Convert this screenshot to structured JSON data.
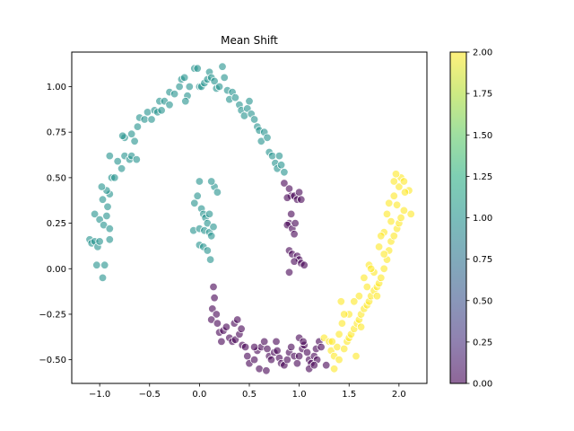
{
  "chart_data": {
    "type": "scatter",
    "title": "Mean Shift",
    "xlabel": "",
    "ylabel": "",
    "xlim": [
      -1.28,
      2.28
    ],
    "ylim": [
      -0.63,
      1.19
    ],
    "x_ticks": [
      "-1.0",
      "-0.5",
      "0.0",
      "0.5",
      "1.0",
      "1.5",
      "2.0"
    ],
    "y_ticks": [
      "-0.50",
      "-0.25",
      "0.00",
      "0.25",
      "0.50",
      "0.75",
      "1.00"
    ],
    "grid": false,
    "colormap": "viridis",
    "colorbar": {
      "range": [
        0,
        2
      ],
      "ticks": [
        "0.00",
        "0.25",
        "0.50",
        "0.75",
        "1.00",
        "1.25",
        "1.50",
        "1.75",
        "2.00"
      ]
    },
    "colors": {
      "cluster_0": "#440154",
      "cluster_1": "#21918c",
      "cluster_2": "#fde725"
    },
    "series": [
      {
        "cluster": 1,
        "points": [
          [
            -1.1,
            0.16
          ],
          [
            -1.08,
            0.14
          ],
          [
            -1.05,
            0.15
          ],
          [
            -1.02,
            0.12
          ],
          [
            -1.0,
            0.15
          ],
          [
            -1.03,
            0.02
          ],
          [
            -0.95,
            0.02
          ],
          [
            -0.97,
            -0.05
          ],
          [
            -1.05,
            0.3
          ],
          [
            -1.0,
            0.27
          ],
          [
            -0.96,
            0.24
          ],
          [
            -0.93,
            0.29
          ],
          [
            -0.9,
            0.22
          ],
          [
            -0.92,
            0.34
          ],
          [
            -0.97,
            0.38
          ],
          [
            -0.9,
            0.41
          ],
          [
            -0.93,
            0.43
          ],
          [
            -0.98,
            0.45
          ],
          [
            -0.9,
            0.16
          ],
          [
            -0.88,
            0.5
          ],
          [
            -0.85,
            0.5
          ],
          [
            -0.9,
            0.62
          ],
          [
            -0.82,
            0.59
          ],
          [
            -0.78,
            0.55
          ],
          [
            -0.75,
            0.62
          ],
          [
            -0.7,
            0.6
          ],
          [
            -0.68,
            0.62
          ],
          [
            -0.63,
            0.6
          ],
          [
            -0.75,
            0.72
          ],
          [
            -0.77,
            0.73
          ],
          [
            -0.68,
            0.74
          ],
          [
            -0.62,
            0.78
          ],
          [
            -0.65,
            0.7
          ],
          [
            -0.6,
            0.83
          ],
          [
            -0.55,
            0.82
          ],
          [
            -0.52,
            0.86
          ],
          [
            -0.48,
            0.82
          ],
          [
            -0.45,
            0.87
          ],
          [
            -0.42,
            0.86
          ],
          [
            -0.4,
            0.92
          ],
          [
            -0.35,
            0.92
          ],
          [
            -0.3,
            0.9
          ],
          [
            -0.38,
            0.87
          ],
          [
            -0.3,
            0.97
          ],
          [
            -0.25,
            0.96
          ],
          [
            -0.2,
            1.0
          ],
          [
            -0.18,
            1.04
          ],
          [
            -0.15,
            1.05
          ],
          [
            -0.1,
            1.0
          ],
          [
            -0.12,
            0.95
          ],
          [
            -0.14,
            0.92
          ],
          [
            -0.05,
            1.1
          ],
          [
            -0.02,
            1.1
          ],
          [
            0.0,
            1.0
          ],
          [
            0.02,
            1.0
          ],
          [
            0.05,
            1.02
          ],
          [
            0.08,
            1.04
          ],
          [
            0.1,
            1.08
          ],
          [
            0.12,
            1.05
          ],
          [
            0.15,
            1.03
          ],
          [
            0.17,
            0.99
          ],
          [
            0.2,
            1.0
          ],
          [
            0.23,
            1.11
          ],
          [
            0.25,
            1.05
          ],
          [
            0.28,
            0.98
          ],
          [
            0.3,
            0.93
          ],
          [
            0.33,
            0.97
          ],
          [
            0.36,
            0.94
          ],
          [
            0.4,
            0.9
          ],
          [
            0.42,
            0.87
          ],
          [
            0.45,
            0.84
          ],
          [
            0.48,
            0.88
          ],
          [
            0.5,
            0.92
          ],
          [
            0.52,
            0.85
          ],
          [
            0.55,
            0.82
          ],
          [
            0.58,
            0.78
          ],
          [
            0.6,
            0.76
          ],
          [
            0.62,
            0.7
          ],
          [
            0.65,
            0.75
          ],
          [
            0.68,
            0.72
          ],
          [
            0.7,
            0.64
          ],
          [
            0.73,
            0.62
          ],
          [
            0.76,
            0.58
          ],
          [
            0.78,
            0.55
          ],
          [
            0.8,
            0.62
          ],
          [
            0.82,
            0.57
          ],
          [
            0.85,
            0.53
          ],
          [
            -0.05,
            0.36
          ],
          [
            -0.02,
            0.4
          ],
          [
            0.0,
            0.48
          ],
          [
            0.02,
            0.33
          ],
          [
            0.04,
            0.3
          ],
          [
            0.06,
            0.28
          ],
          [
            0.08,
            0.25
          ],
          [
            -0.06,
            0.21
          ],
          [
            0.0,
            0.22
          ],
          [
            0.05,
            0.21
          ],
          [
            0.1,
            0.2
          ],
          [
            0.12,
            0.18
          ],
          [
            0.14,
            0.23
          ],
          [
            0.1,
            0.3
          ],
          [
            0.15,
            0.45
          ],
          [
            0.18,
            0.42
          ],
          [
            0.12,
            0.48
          ],
          [
            0.0,
            0.13
          ],
          [
            0.04,
            0.12
          ],
          [
            0.08,
            0.1
          ],
          [
            0.11,
            0.05
          ]
        ]
      },
      {
        "cluster": 0,
        "points": [
          [
            0.85,
            0.47
          ],
          [
            0.9,
            0.44
          ],
          [
            0.92,
            0.4
          ],
          [
            0.88,
            0.39
          ],
          [
            0.95,
            0.4
          ],
          [
            0.98,
            0.38
          ],
          [
            1.0,
            0.42
          ],
          [
            1.02,
            0.38
          ],
          [
            0.92,
            0.3
          ],
          [
            0.9,
            0.25
          ],
          [
            0.88,
            0.24
          ],
          [
            0.93,
            0.22
          ],
          [
            0.96,
            0.25
          ],
          [
            0.95,
            0.19
          ],
          [
            0.9,
            0.1
          ],
          [
            0.93,
            0.08
          ],
          [
            0.98,
            0.07
          ],
          [
            1.0,
            0.05
          ],
          [
            0.95,
            0.04
          ],
          [
            1.02,
            0.03
          ],
          [
            0.9,
            -0.02
          ],
          [
            1.05,
            0.02
          ],
          [
            0.14,
            -0.1
          ],
          [
            0.15,
            -0.16
          ],
          [
            0.13,
            -0.22
          ],
          [
            0.17,
            -0.25
          ],
          [
            0.12,
            -0.28
          ],
          [
            0.18,
            -0.3
          ],
          [
            0.2,
            -0.35
          ],
          [
            0.24,
            -0.34
          ],
          [
            0.27,
            -0.32
          ],
          [
            0.3,
            -0.38
          ],
          [
            0.33,
            -0.4
          ],
          [
            0.36,
            -0.39
          ],
          [
            0.4,
            -0.36
          ],
          [
            0.43,
            -0.42
          ],
          [
            0.46,
            -0.43
          ],
          [
            0.48,
            -0.48
          ],
          [
            0.5,
            -0.52
          ],
          [
            0.55,
            -0.5
          ],
          [
            0.58,
            -0.45
          ],
          [
            0.62,
            -0.43
          ],
          [
            0.65,
            -0.4
          ],
          [
            0.68,
            -0.44
          ],
          [
            0.7,
            -0.48
          ],
          [
            0.72,
            -0.5
          ],
          [
            0.75,
            -0.46
          ],
          [
            0.78,
            -0.45
          ],
          [
            0.8,
            -0.49
          ],
          [
            0.82,
            -0.52
          ],
          [
            0.85,
            -0.53
          ],
          [
            0.88,
            -0.5
          ],
          [
            0.9,
            -0.46
          ],
          [
            0.92,
            -0.43
          ],
          [
            0.95,
            -0.48
          ],
          [
            0.98,
            -0.52
          ],
          [
            1.0,
            -0.48
          ],
          [
            1.03,
            -0.44
          ],
          [
            1.05,
            -0.42
          ],
          [
            1.08,
            -0.46
          ],
          [
            1.1,
            -0.5
          ],
          [
            1.12,
            -0.52
          ],
          [
            1.15,
            -0.48
          ],
          [
            1.17,
            -0.44
          ],
          [
            1.2,
            -0.4
          ],
          [
            1.22,
            -0.43
          ],
          [
            1.18,
            -0.5
          ],
          [
            1.27,
            -0.53
          ],
          [
            0.35,
            -0.3
          ],
          [
            0.38,
            -0.28
          ],
          [
            0.42,
            -0.33
          ],
          [
            0.55,
            -0.43
          ],
          [
            0.6,
            -0.55
          ],
          [
            0.67,
            -0.56
          ],
          [
            0.77,
            -0.4
          ],
          [
            1.0,
            -0.38
          ],
          [
            1.04,
            -0.4
          ],
          [
            1.1,
            -0.55
          ],
          [
            1.15,
            -0.53
          ],
          [
            0.22,
            -0.4
          ]
        ]
      },
      {
        "cluster": 2,
        "points": [
          [
            1.25,
            -0.38
          ],
          [
            1.3,
            -0.4
          ],
          [
            1.32,
            -0.45
          ],
          [
            1.35,
            -0.48
          ],
          [
            1.38,
            -0.43
          ],
          [
            1.4,
            -0.36
          ],
          [
            1.43,
            -0.3
          ],
          [
            1.45,
            -0.44
          ],
          [
            1.48,
            -0.4
          ],
          [
            1.5,
            -0.38
          ],
          [
            1.52,
            -0.36
          ],
          [
            1.55,
            -0.33
          ],
          [
            1.58,
            -0.3
          ],
          [
            1.6,
            -0.28
          ],
          [
            1.62,
            -0.25
          ],
          [
            1.65,
            -0.22
          ],
          [
            1.68,
            -0.2
          ],
          [
            1.7,
            -0.18
          ],
          [
            1.72,
            -0.15
          ],
          [
            1.75,
            -0.12
          ],
          [
            1.78,
            -0.1
          ],
          [
            1.8,
            -0.08
          ],
          [
            1.82,
            -0.05
          ],
          [
            1.85,
            0.0
          ],
          [
            1.88,
            0.05
          ],
          [
            1.9,
            0.1
          ],
          [
            1.92,
            0.15
          ],
          [
            1.95,
            0.18
          ],
          [
            1.98,
            0.22
          ],
          [
            2.0,
            0.25
          ],
          [
            2.02,
            0.28
          ],
          [
            2.05,
            0.32
          ],
          [
            1.9,
            0.36
          ],
          [
            1.95,
            0.4
          ],
          [
            2.0,
            0.45
          ],
          [
            2.02,
            0.5
          ],
          [
            1.97,
            0.52
          ],
          [
            2.05,
            0.48
          ],
          [
            2.1,
            0.43
          ],
          [
            2.12,
            0.3
          ],
          [
            1.85,
            0.2
          ],
          [
            1.8,
            0.12
          ],
          [
            1.75,
            -0.02
          ],
          [
            1.7,
            0.02
          ],
          [
            1.65,
            -0.05
          ],
          [
            1.6,
            -0.15
          ],
          [
            1.55,
            -0.18
          ],
          [
            1.5,
            -0.25
          ],
          [
            1.45,
            -0.25
          ],
          [
            1.4,
            -0.5
          ],
          [
            1.35,
            -0.55
          ],
          [
            1.33,
            -0.4
          ],
          [
            1.88,
            0.3
          ],
          [
            1.92,
            0.26
          ],
          [
            1.85,
            0.08
          ],
          [
            1.98,
            0.35
          ],
          [
            1.78,
            -0.15
          ],
          [
            1.62,
            -0.32
          ],
          [
            1.57,
            -0.48
          ],
          [
            1.68,
            -0.1
          ],
          [
            1.72,
            0.0
          ],
          [
            1.82,
            0.18
          ],
          [
            1.42,
            -0.18
          ],
          [
            1.95,
            0.48
          ],
          [
            2.06,
            0.42
          ]
        ]
      }
    ]
  }
}
